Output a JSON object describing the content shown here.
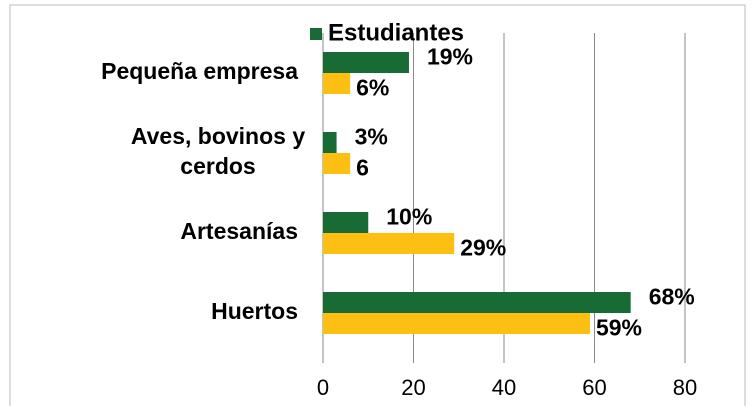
{
  "chart_data": {
    "type": "bar",
    "orientation": "horizontal",
    "categories": [
      "Pequeña empresa",
      "Aves, bovinos y cerdos",
      "Artesanías",
      "Huertos"
    ],
    "series": [
      {
        "name": "Estudiantes",
        "color": "#186b35",
        "values": [
          19,
          3,
          10,
          68
        ],
        "value_labels": [
          "19%",
          "3%",
          "10%",
          "68%"
        ]
      },
      {
        "color": "#fdbf12",
        "values": [
          6,
          6,
          29,
          59
        ],
        "value_labels": [
          "6%",
          "6",
          "29%",
          "59%"
        ]
      }
    ],
    "xlim": [
      0,
      80
    ],
    "xticks": [
      0,
      20,
      40,
      60,
      80
    ],
    "grid": true,
    "legend": "top"
  }
}
